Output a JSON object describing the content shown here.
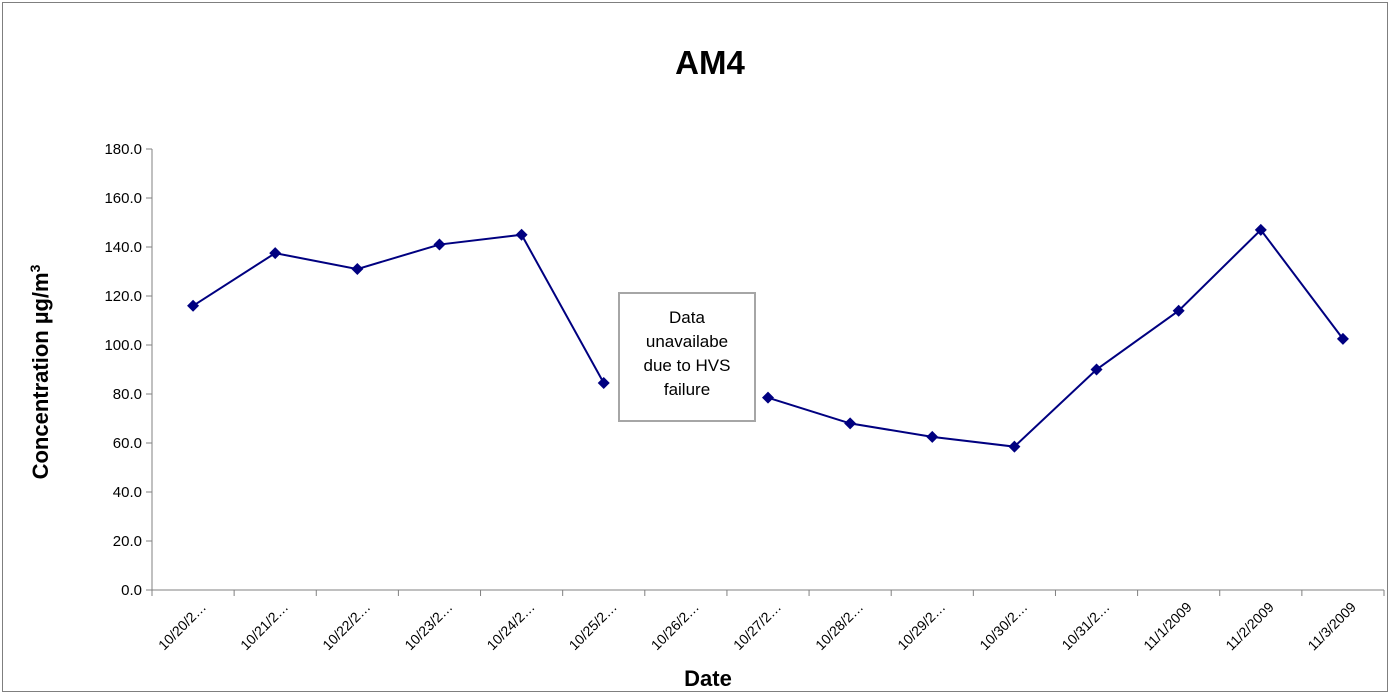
{
  "chart_data": {
    "type": "line",
    "title": "AM4",
    "xlabel": "Date",
    "ylabel": "Concentration µg/m",
    "ylabel_superscript": "3",
    "categories": [
      "10/20/2…",
      "10/21/2…",
      "10/22/2…",
      "10/23/2…",
      "10/24/2…",
      "10/25/2…",
      "10/26/2…",
      "10/27/2…",
      "10/28/2…",
      "10/29/2…",
      "10/30/2…",
      "10/31/2…",
      "11/1/2009",
      "11/2/2009",
      "11/3/2009"
    ],
    "series": [
      {
        "values": [
          116.0,
          137.5,
          131.0,
          141.0,
          145.0,
          84.5,
          null,
          78.5,
          68.0,
          62.5,
          58.5,
          90.0,
          114.0,
          147.0,
          102.5
        ]
      }
    ],
    "ylim": [
      0,
      180
    ],
    "yticks": [
      0,
      20,
      40,
      60,
      80,
      100,
      120,
      140,
      160,
      180
    ],
    "ytick_labels": [
      "0.0",
      "20.0",
      "40.0",
      "60.0",
      "80.0",
      "100.0",
      "120.0",
      "140.0",
      "160.0",
      "180.0"
    ],
    "grid": false,
    "legend": "none",
    "series_color": "#000080",
    "marker": "diamond",
    "annotation": {
      "lines": [
        "Data",
        "unavailabe",
        "due to HVS",
        "failure"
      ]
    }
  }
}
